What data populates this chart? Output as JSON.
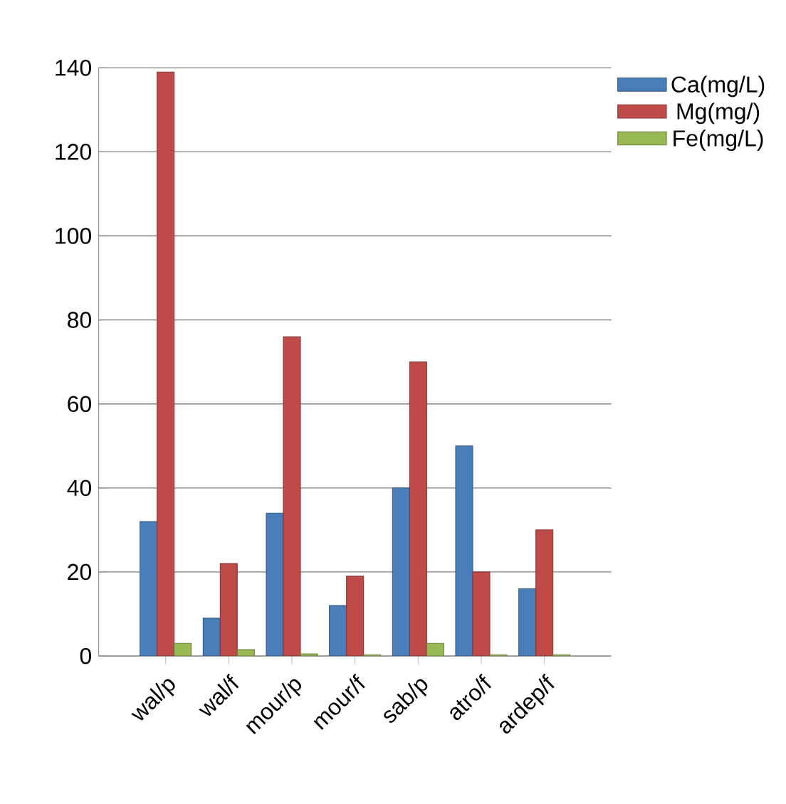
{
  "chart_data": {
    "type": "bar",
    "categories": [
      "wal/p",
      "wal/f",
      "mour/p",
      "mour/f",
      "sab/p",
      "atro/f",
      "ardep/f"
    ],
    "series": [
      {
        "name": "Ca(mg/L)",
        "color": "#4a7ebb",
        "values": [
          32,
          9,
          34,
          12,
          40,
          50,
          16
        ]
      },
      {
        "name": "Mg(mg/)",
        "color": "#be4b48",
        "values": [
          139,
          22,
          76,
          19,
          70,
          20,
          30
        ]
      },
      {
        "name": "Fe(mg/L)",
        "color": "#98b954",
        "values": [
          3,
          1.5,
          0.5,
          0.3,
          3,
          0.3,
          0.3
        ]
      }
    ],
    "ylim": [
      0,
      140
    ],
    "yticks": [
      0,
      20,
      40,
      60,
      80,
      100,
      120,
      140
    ],
    "grid": "y",
    "legend": "top right"
  }
}
